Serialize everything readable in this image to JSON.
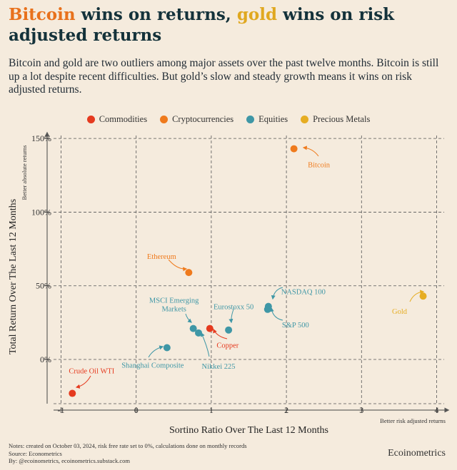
{
  "title": {
    "part1": "Bitcoin",
    "part2": " wins on returns, ",
    "part3": "gold",
    "part4": " wins on risk adjusted returns"
  },
  "subtitle": "Bitcoin and gold are two outliers among major assets over the past twelve months. Bitcoin is still up a lot despite recent difficulties. But gold’s slow and steady growth means it wins on risk adjusted returns.",
  "legend": [
    {
      "label": "Commodities",
      "color": "#e53a1f"
    },
    {
      "label": "Cryptocurrencies",
      "color": "#ef7a1c"
    },
    {
      "label": "Equities",
      "color": "#3f97a6"
    },
    {
      "label": "Precious Metals",
      "color": "#e6ad22"
    }
  ],
  "chart_data": {
    "type": "scatter",
    "xlabel": "Sortino Ratio Over The Last 12 Months",
    "ylabel": "Total Return Over The Last 12 Months",
    "xlim": [
      -1.1,
      4.1
    ],
    "ylim": [
      -30,
      152
    ],
    "xticks": [
      -1,
      0,
      1,
      2,
      3,
      4
    ],
    "yticks": [
      0,
      50,
      100,
      150
    ],
    "ytick_labels": [
      "0%",
      "50%",
      "100%",
      "150%"
    ],
    "grid": true,
    "y_annotation": "Better absolute returns",
    "x_annotation": "Better risk adjusted returns",
    "points": [
      {
        "name": "Bitcoin",
        "category": "Cryptocurrencies",
        "x": 2.1,
        "y": 143
      },
      {
        "name": "Ethereum",
        "category": "Cryptocurrencies",
        "x": 0.7,
        "y": 59
      },
      {
        "name": "Gold",
        "category": "Precious Metals",
        "x": 3.82,
        "y": 43
      },
      {
        "name": "NASDAQ 100",
        "category": "Equities",
        "x": 1.76,
        "y": 36
      },
      {
        "name": "S&P 500",
        "category": "Equities",
        "x": 1.75,
        "y": 34
      },
      {
        "name": "Eurostoxx 50",
        "category": "Equities",
        "x": 1.23,
        "y": 20
      },
      {
        "name": "MSCI Emerging Markets",
        "category": "Equities",
        "x": 0.76,
        "y": 21
      },
      {
        "name": "Nikkei 225",
        "category": "Equities",
        "x": 0.83,
        "y": 18
      },
      {
        "name": "Shanghai Composite",
        "category": "Equities",
        "x": 0.41,
        "y": 8
      },
      {
        "name": "Copper",
        "category": "Commodities",
        "x": 0.98,
        "y": 21
      },
      {
        "name": "Crude Oil WTI",
        "category": "Commodities",
        "x": -0.85,
        "y": -23
      }
    ]
  },
  "notes": [
    "Notes: created on October 03, 2024, risk free rate set to 0%, calculations done on monthly records",
    "Source: Econometrics",
    "By: @ecoinometrics, ecoinometrics.substack.com"
  ],
  "brand": "Ecoinometrics"
}
